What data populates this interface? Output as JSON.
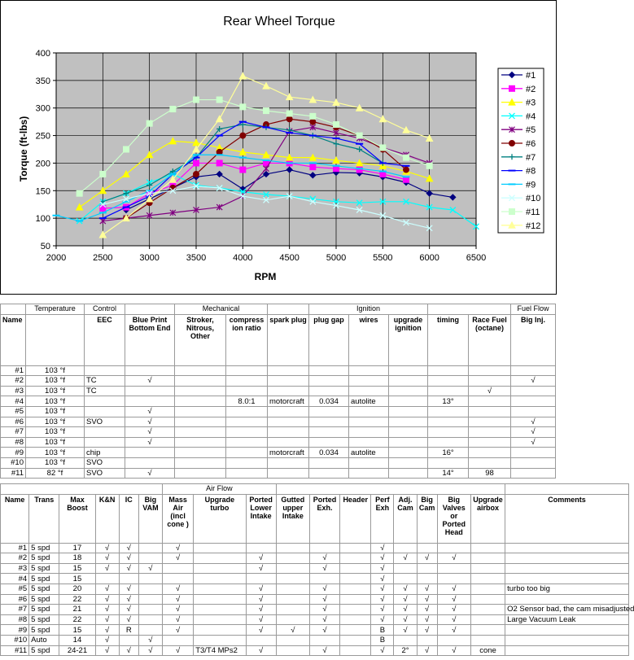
{
  "chart_data": {
    "type": "line",
    "title": "Rear Wheel Torque",
    "xlabel": "RPM",
    "ylabel": "Torque (ft-lbs)",
    "xlim": [
      2000,
      6500
    ],
    "ylim": [
      50,
      400
    ],
    "xticks": [
      2000,
      2500,
      3000,
      3500,
      4000,
      4500,
      5000,
      5500,
      6000,
      6500
    ],
    "yticks": [
      50,
      100,
      150,
      200,
      250,
      300,
      350,
      400
    ],
    "grid": true,
    "legend_position": "right",
    "series": [
      {
        "name": "#1",
        "color": "#000080",
        "marker": "diamond",
        "x": [
          2750,
          3000,
          3250,
          3500,
          3750,
          4000,
          4250,
          4500,
          4750,
          5000,
          5250,
          5500,
          5750,
          6000,
          6250
        ],
        "y": [
          115,
          135,
          155,
          175,
          180,
          153,
          180,
          188,
          178,
          183,
          182,
          175,
          165,
          145,
          138
        ]
      },
      {
        "name": "#2",
        "color": "#ff00ff",
        "marker": "square",
        "x": [
          2500,
          2750,
          3000,
          3250,
          3500,
          3750,
          4000,
          4250,
          4500,
          4750,
          5000,
          5250,
          5500,
          5750
        ],
        "y": [
          118,
          120,
          145,
          160,
          200,
          200,
          188,
          200,
          200,
          193,
          190,
          188,
          180,
          170
        ]
      },
      {
        "name": "#3",
        "color": "#ffff00",
        "marker": "triangle",
        "x": [
          2250,
          2500,
          2750,
          3000,
          3250,
          3500,
          3750,
          4000,
          4250,
          4500,
          4750,
          5000,
          5250,
          5500,
          5750,
          6000
        ],
        "y": [
          120,
          150,
          180,
          215,
          240,
          237,
          228,
          220,
          215,
          210,
          210,
          205,
          200,
          195,
          185,
          172
        ]
      },
      {
        "name": "#4",
        "color": "#00ffff",
        "marker": "x",
        "x": [
          2250,
          2500,
          2750,
          3000,
          3250,
          3500,
          3750,
          4000,
          4250,
          4500,
          4750,
          5000,
          5250,
          5500,
          5750,
          6000,
          6250,
          6500
        ],
        "y": [
          95,
          130,
          145,
          165,
          180,
          160,
          155,
          148,
          143,
          140,
          135,
          130,
          128,
          130,
          130,
          120,
          115,
          85
        ]
      },
      {
        "name": "#5",
        "color": "#800080",
        "marker": "star",
        "x": [
          2500,
          2750,
          3000,
          3250,
          3500,
          3750,
          4000,
          4250,
          4500,
          4750,
          5000,
          5250,
          5500,
          5750,
          6000
        ],
        "y": [
          95,
          100,
          105,
          110,
          115,
          120,
          140,
          190,
          258,
          265,
          255,
          245,
          228,
          215,
          200
        ]
      },
      {
        "name": "#6",
        "color": "#800000",
        "marker": "circle",
        "x": [
          2750,
          3000,
          3250,
          3500,
          3750,
          4000,
          4250,
          4500,
          4750,
          5000,
          5250,
          5500,
          5750
        ],
        "y": [
          100,
          128,
          155,
          180,
          220,
          250,
          270,
          280,
          275,
          265,
          250,
          225,
          188
        ]
      },
      {
        "name": "#7",
        "color": "#008080",
        "marker": "plus",
        "x": [
          2500,
          2750,
          3000,
          3250,
          3500,
          3750,
          4000,
          4250,
          4500,
          4750,
          5000,
          5250,
          5500
        ],
        "y": [
          130,
          145,
          160,
          185,
          210,
          262,
          270,
          265,
          260,
          250,
          235,
          225,
          200
        ]
      },
      {
        "name": "#8",
        "color": "#0000ff",
        "marker": "dash",
        "x": [
          2500,
          2750,
          3000,
          3250,
          3500,
          3750,
          4000,
          4250,
          4500,
          4750,
          5000,
          5250,
          5500,
          5750
        ],
        "y": [
          100,
          120,
          140,
          180,
          210,
          250,
          275,
          265,
          255,
          250,
          245,
          235,
          200,
          195
        ]
      },
      {
        "name": "#9",
        "color": "#00ccff",
        "marker": "dash",
        "x": [
          2000,
          2250,
          2500,
          2750,
          3000,
          3250,
          3500,
          3750,
          4000,
          4250,
          4500,
          4750,
          5000,
          5250,
          5500,
          5750
        ],
        "y": [
          105,
          95,
          110,
          130,
          150,
          180,
          215,
          215,
          210,
          205,
          200,
          200,
          195,
          190,
          185,
          175
        ]
      },
      {
        "name": "#10",
        "color": "#ccffff",
        "marker": "x",
        "x": [
          2500,
          2750,
          3000,
          3250,
          3500,
          3750,
          4000,
          4250,
          4500,
          4750,
          5000,
          5250,
          5500,
          5750,
          6000
        ],
        "y": [
          125,
          135,
          145,
          150,
          158,
          155,
          140,
          133,
          140,
          130,
          123,
          115,
          105,
          92,
          82
        ]
      },
      {
        "name": "#11",
        "color": "#ccffcc",
        "marker": "square",
        "x": [
          2250,
          2500,
          2750,
          3000,
          3250,
          3500,
          3750,
          4000,
          4250,
          4500,
          4750,
          5000,
          5250,
          5500,
          5750,
          6000
        ],
        "y": [
          145,
          180,
          225,
          272,
          298,
          315,
          315,
          302,
          295,
          290,
          285,
          270,
          250,
          228,
          210,
          195
        ]
      },
      {
        "name": "#12",
        "color": "#ffff99",
        "marker": "triangle",
        "x": [
          2500,
          2750,
          3000,
          3250,
          3500,
          3750,
          4000,
          4250,
          4500,
          4750,
          5000,
          5250,
          5500,
          5750,
          6000
        ],
        "y": [
          70,
          100,
          135,
          170,
          225,
          280,
          358,
          340,
          320,
          315,
          310,
          300,
          280,
          260,
          245
        ]
      }
    ]
  },
  "table1": {
    "groups": [
      "Temperature",
      "Control",
      "Mechanical",
      "Ignition",
      "Fuel Flow"
    ],
    "headers": [
      "Name",
      "",
      "EEC",
      "Blue Print Bottom End",
      "Stroker, Nitrous, Other",
      "compress ion ratio",
      "spark plug",
      "plug gap",
      "wires",
      "upgrade ignition",
      "timing",
      "Race Fuel (octane)",
      "Big Inj."
    ],
    "rows": [
      [
        "#1",
        "103 °f",
        "",
        "",
        "",
        "",
        "",
        "",
        "",
        "",
        "",
        "",
        ""
      ],
      [
        "#2",
        "103 °f",
        "TC",
        "√",
        "",
        "",
        "",
        "",
        "",
        "",
        "",
        "",
        "√"
      ],
      [
        "#3",
        "103 °f",
        "TC",
        "",
        "",
        "",
        "",
        "",
        "",
        "",
        "",
        "√",
        ""
      ],
      [
        "#4",
        "103 °f",
        "",
        "",
        "",
        "8.0:1",
        "motorcraft",
        "0.034",
        "autolite",
        "",
        "13°",
        "",
        ""
      ],
      [
        "#5",
        "103 °f",
        "",
        "√",
        "",
        "",
        "",
        "",
        "",
        "",
        "",
        "",
        ""
      ],
      [
        "#6",
        "103 °f",
        "SVO",
        "√",
        "",
        "",
        "",
        "",
        "",
        "",
        "",
        "",
        "√"
      ],
      [
        "#7",
        "103 °f",
        "",
        "√",
        "",
        "",
        "",
        "",
        "",
        "",
        "",
        "",
        "√"
      ],
      [
        "#8",
        "103 °f",
        "",
        "√",
        "",
        "",
        "",
        "",
        "",
        "",
        "",
        "",
        "√"
      ],
      [
        "#9",
        "103 °f",
        "chip",
        "",
        "",
        "",
        "motorcraft",
        "0.034",
        "autolite",
        "",
        "16°",
        "",
        ""
      ],
      [
        "#10",
        "103 °f",
        "SVO",
        "",
        "",
        "",
        "",
        "",
        "",
        "",
        "",
        "",
        ""
      ],
      [
        "#11",
        "82 °f",
        "SVO",
        "√",
        "",
        "",
        "",
        "",
        "",
        "",
        "14°",
        "98",
        ""
      ]
    ]
  },
  "table2": {
    "group": "Air Flow",
    "headers": [
      "Name",
      "Trans",
      "Max Boost",
      "K&N",
      "IC",
      "Big VAM",
      "Mass Air (incl cone )",
      "Upgrade turbo",
      "Ported Lower Intake",
      "Gutted upper Intake",
      "Ported Exh.",
      "Header",
      "Perf Exh",
      "Adj. Cam",
      "Big Cam",
      "Big Valves or Ported Head",
      "Upgrade airbox",
      "Comments"
    ],
    "rows": [
      [
        "#1",
        "5 spd",
        "17",
        "√",
        "√",
        "",
        "√",
        "",
        "",
        "",
        "",
        "",
        "√",
        "",
        "",
        "",
        "",
        ""
      ],
      [
        "#2",
        "5 spd",
        "18",
        "√",
        "√",
        "",
        "√",
        "",
        "√",
        "",
        "√",
        "",
        "√",
        "√",
        "√",
        "√",
        "",
        ""
      ],
      [
        "#3",
        "5 spd",
        "15",
        "√",
        "√",
        "√",
        "",
        "",
        "√",
        "",
        "√",
        "",
        "√",
        "",
        "",
        "",
        "",
        ""
      ],
      [
        "#4",
        "5 spd",
        "15",
        "",
        "",
        "",
        "",
        "",
        "",
        "",
        "",
        "",
        "√",
        "",
        "",
        "",
        "",
        ""
      ],
      [
        "#5",
        "5 spd",
        "20",
        "√",
        "√",
        "",
        "√",
        "",
        "√",
        "",
        "√",
        "",
        "√",
        "√",
        "√",
        "√",
        "",
        "turbo too big"
      ],
      [
        "#6",
        "5 spd",
        "22",
        "√",
        "√",
        "",
        "√",
        "",
        "√",
        "",
        "√",
        "",
        "√",
        "√",
        "√",
        "√",
        "",
        ""
      ],
      [
        "#7",
        "5 spd",
        "21",
        "√",
        "√",
        "",
        "√",
        "",
        "√",
        "",
        "√",
        "",
        "√",
        "√",
        "√",
        "√",
        "",
        "O2 Sensor bad, the cam misadjusted"
      ],
      [
        "#8",
        "5 spd",
        "22",
        "√",
        "√",
        "",
        "√",
        "",
        "√",
        "",
        "√",
        "",
        "√",
        "√",
        "√",
        "√",
        "",
        "Large Vacuum Leak"
      ],
      [
        "#9",
        "5 spd",
        "15",
        "√",
        "R",
        "",
        "√",
        "",
        "√",
        "√",
        "√",
        "",
        "B",
        "√",
        "√",
        "√",
        "",
        ""
      ],
      [
        "#10",
        "Auto",
        "14",
        "√",
        "",
        "√",
        "",
        "",
        "",
        "",
        "",
        "",
        "B",
        "",
        "",
        "",
        "",
        ""
      ],
      [
        "#11",
        "5 spd",
        "24-21",
        "√",
        "√",
        "√",
        "√",
        "T3/T4 MPs2",
        "√",
        "",
        "√",
        "",
        "√",
        "2°",
        "√",
        "√",
        "cone",
        ""
      ]
    ]
  }
}
